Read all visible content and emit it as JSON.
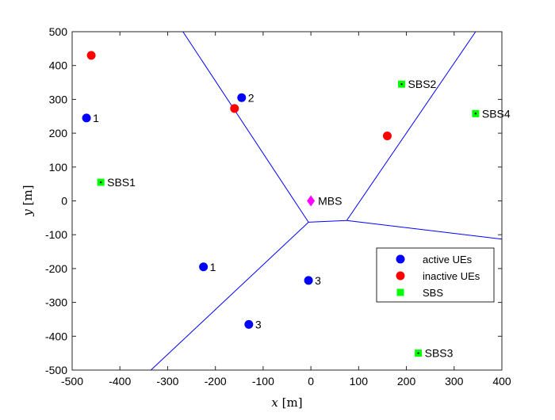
{
  "chart_data": {
    "type": "scatter",
    "xlabel_var": "x",
    "xlabel_unit": "[m]",
    "ylabel_var": "y",
    "ylabel_unit": "[m]",
    "xlim": [
      -500,
      400
    ],
    "ylim": [
      -500,
      500
    ],
    "xticks": [
      -500,
      -400,
      -300,
      -200,
      -100,
      0,
      100,
      200,
      300,
      400
    ],
    "yticks": [
      -500,
      -400,
      -300,
      -200,
      -100,
      0,
      100,
      200,
      300,
      400,
      500
    ],
    "grid": false,
    "legend_position": "bottom-right",
    "colors": {
      "active": "#0000ff",
      "inactive": "#ff0000",
      "sbs": "#00ff00",
      "mbs": "#ff00ff",
      "boundary": "#0000ff",
      "axis": "#262626"
    },
    "series": [
      {
        "name": "active UEs",
        "color": "#0000ff",
        "marker": "circle",
        "points": [
          {
            "x": -470,
            "y": 245,
            "label": "1"
          },
          {
            "x": -145,
            "y": 305,
            "label": "2"
          },
          {
            "x": -225,
            "y": -195,
            "label": "1"
          },
          {
            "x": -5,
            "y": -235,
            "label": "3"
          },
          {
            "x": -130,
            "y": -365,
            "label": "3"
          }
        ]
      },
      {
        "name": "inactive UEs",
        "color": "#ff0000",
        "marker": "circle",
        "points": [
          {
            "x": -460,
            "y": 430
          },
          {
            "x": -160,
            "y": 273
          },
          {
            "x": 160,
            "y": 192
          }
        ]
      },
      {
        "name": "SBS",
        "color": "#00ff00",
        "marker": "square",
        "points": [
          {
            "x": -440,
            "y": 55,
            "label": "SBS1"
          },
          {
            "x": 190,
            "y": 345,
            "label": "SBS2"
          },
          {
            "x": 225,
            "y": -450,
            "label": "SBS3"
          },
          {
            "x": 345,
            "y": 258,
            "label": "SBS4"
          }
        ]
      }
    ],
    "mbs": {
      "x": 0,
      "y": 0,
      "label": "MBS",
      "color": "#ff00ff",
      "marker": "diamond"
    },
    "boundaries": [
      [
        [
          -268,
          500
        ],
        [
          -5,
          -63
        ]
      ],
      [
        [
          -5,
          -63
        ],
        [
          75,
          -58
        ]
      ],
      [
        [
          75,
          -58
        ],
        [
          400,
          -113
        ]
      ],
      [
        [
          75,
          -58
        ],
        [
          345,
          500
        ]
      ],
      [
        [
          -5,
          -63
        ],
        [
          -335,
          -500
        ]
      ]
    ],
    "legend": [
      {
        "label": "active UEs",
        "color": "#0000ff",
        "marker": "circle"
      },
      {
        "label": "inactive UEs",
        "color": "#ff0000",
        "marker": "circle"
      },
      {
        "label": "SBS",
        "color": "#00ff00",
        "marker": "square"
      }
    ]
  }
}
